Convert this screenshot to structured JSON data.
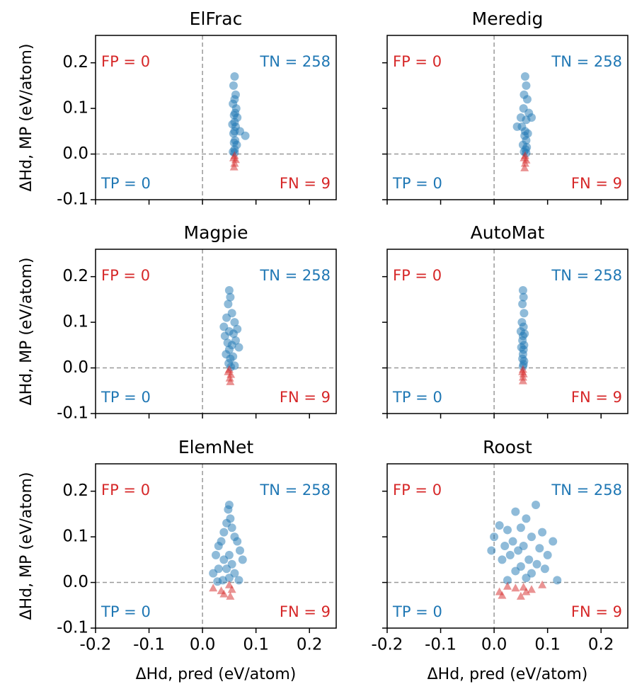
{
  "chart_data": [
    {
      "type": "scatter",
      "title": "ElFrac",
      "xlim": [
        -0.2,
        0.25
      ],
      "ylim": [
        -0.1,
        0.26
      ],
      "xticks": [
        -0.2,
        -0.1,
        0,
        0.1,
        0.2
      ],
      "yticks": [
        -0.1,
        {
          "value": 0,
          "label": "0.0"
        },
        0.1,
        0.2
      ],
      "ylabel": "ΔHd, MP (eV/atom)",
      "hline": 0,
      "vline": 0,
      "series": [
        {
          "color": "#1f77b4",
          "marker": "circle",
          "x": [
            0.06,
            0.058,
            0.062,
            0.06,
            0.057,
            0.063,
            0.061,
            0.059,
            0.065,
            0.06,
            0.056,
            0.062,
            0.06,
            0.058,
            0.07,
            0.08,
            0.061,
            0.059,
            0.064,
            0.06,
            0.057,
            0.06
          ],
          "values": [
            0.17,
            0.15,
            0.13,
            0.12,
            0.11,
            0.1,
            0.09,
            0.085,
            0.08,
            0.07,
            0.065,
            0.06,
            0.05,
            0.045,
            0.05,
            0.04,
            0.03,
            0.025,
            0.02,
            0.01,
            0.005,
            0.003
          ]
        },
        {
          "color": "#d62728",
          "marker": "triangle",
          "x": [
            0.06,
            0.058,
            0.062,
            0.06,
            0.059
          ],
          "values": [
            -0.003,
            -0.008,
            -0.012,
            -0.02,
            -0.028
          ]
        }
      ],
      "annotations": [
        {
          "text": "FP = 0",
          "color": "#d62728"
        },
        {
          "text": "TN = 258",
          "color": "#1f77b4"
        },
        {
          "text": "TP = 0",
          "color": "#1f77b4"
        },
        {
          "text": "FN = 9",
          "color": "#d62728"
        }
      ]
    },
    {
      "type": "scatter",
      "title": "Meredig",
      "xlim": [
        -0.2,
        0.25
      ],
      "ylim": [
        -0.1,
        0.26
      ],
      "xticks": [
        -0.2,
        -0.1,
        0,
        0.1,
        0.2
      ],
      "yticks": [
        -0.1,
        0,
        0.1,
        0.2
      ],
      "hline": 0,
      "vline": 0,
      "series": [
        {
          "color": "#1f77b4",
          "marker": "circle",
          "x": [
            0.058,
            0.06,
            0.056,
            0.062,
            0.055,
            0.065,
            0.05,
            0.043,
            0.06,
            0.07,
            0.052,
            0.058,
            0.063,
            0.057,
            0.06,
            0.054,
            0.061,
            0.059,
            0.056,
            0.06
          ],
          "values": [
            0.17,
            0.15,
            0.13,
            0.12,
            0.1,
            0.09,
            0.08,
            0.06,
            0.075,
            0.08,
            0.06,
            0.05,
            0.045,
            0.04,
            0.03,
            0.02,
            0.015,
            0.01,
            0.005,
            0.002
          ]
        },
        {
          "color": "#d62728",
          "marker": "triangle",
          "x": [
            0.058,
            0.056,
            0.06,
            0.058,
            0.057
          ],
          "values": [
            -0.003,
            -0.008,
            -0.013,
            -0.02,
            -0.03
          ]
        }
      ],
      "annotations": [
        {
          "text": "FP = 0",
          "color": "#d62728"
        },
        {
          "text": "TN = 258",
          "color": "#1f77b4"
        },
        {
          "text": "TP = 0",
          "color": "#1f77b4"
        },
        {
          "text": "FN = 9",
          "color": "#d62728"
        }
      ]
    },
    {
      "type": "scatter",
      "title": "Magpie",
      "xlim": [
        -0.2,
        0.25
      ],
      "ylim": [
        -0.1,
        0.26
      ],
      "xticks": [
        -0.2,
        -0.1,
        0,
        0.1,
        0.2
      ],
      "yticks": [
        -0.1,
        {
          "value": 0,
          "label": "0.0"
        },
        0.1,
        0.2
      ],
      "ylabel": "ΔHd, MP (eV/atom)",
      "hline": 0,
      "vline": 0,
      "series": [
        {
          "color": "#1f77b4",
          "marker": "circle",
          "x": [
            0.05,
            0.052,
            0.048,
            0.055,
            0.045,
            0.06,
            0.04,
            0.065,
            0.05,
            0.058,
            0.042,
            0.062,
            0.047,
            0.055,
            0.068,
            0.05,
            0.044,
            0.057,
            0.052,
            0.049,
            0.06,
            0.053
          ],
          "values": [
            0.17,
            0.155,
            0.14,
            0.12,
            0.11,
            0.1,
            0.09,
            0.085,
            0.08,
            0.075,
            0.07,
            0.06,
            0.055,
            0.05,
            0.045,
            0.04,
            0.03,
            0.025,
            0.02,
            0.01,
            0.005,
            0.002
          ]
        },
        {
          "color": "#d62728",
          "marker": "triangle",
          "x": [
            0.05,
            0.048,
            0.053,
            0.051,
            0.052
          ],
          "values": [
            -0.003,
            -0.008,
            -0.014,
            -0.022,
            -0.03
          ]
        }
      ],
      "annotations": [
        {
          "text": "FP = 0",
          "color": "#d62728"
        },
        {
          "text": "TN = 258",
          "color": "#1f77b4"
        },
        {
          "text": "TP = 0",
          "color": "#1f77b4"
        },
        {
          "text": "FN = 9",
          "color": "#d62728"
        }
      ]
    },
    {
      "type": "scatter",
      "title": "AutoMat",
      "xlim": [
        -0.2,
        0.25
      ],
      "ylim": [
        -0.1,
        0.26
      ],
      "xticks": [
        -0.2,
        -0.1,
        0,
        0.1,
        0.2
      ],
      "yticks": [
        -0.1,
        0,
        0.1,
        0.2
      ],
      "hline": 0,
      "vline": 0,
      "series": [
        {
          "color": "#1f77b4",
          "marker": "circle",
          "x": [
            0.054,
            0.055,
            0.053,
            0.056,
            0.052,
            0.055,
            0.05,
            0.057,
            0.054,
            0.053,
            0.056,
            0.051,
            0.055,
            0.054,
            0.053,
            0.056,
            0.055,
            0.054
          ],
          "values": [
            0.17,
            0.155,
            0.14,
            0.12,
            0.1,
            0.09,
            0.08,
            0.075,
            0.07,
            0.06,
            0.05,
            0.045,
            0.04,
            0.03,
            0.02,
            0.015,
            0.008,
            0.003
          ]
        },
        {
          "color": "#d62728",
          "marker": "triangle",
          "x": [
            0.054,
            0.053,
            0.055,
            0.054,
            0.054
          ],
          "values": [
            -0.003,
            -0.008,
            -0.013,
            -0.02,
            -0.028
          ]
        }
      ],
      "annotations": [
        {
          "text": "FP = 0",
          "color": "#d62728"
        },
        {
          "text": "TN = 258",
          "color": "#1f77b4"
        },
        {
          "text": "TP = 0",
          "color": "#1f77b4"
        },
        {
          "text": "FN = 9",
          "color": "#d62728"
        }
      ]
    },
    {
      "type": "scatter",
      "title": "ElemNet",
      "xlim": [
        -0.2,
        0.25
      ],
      "ylim": [
        -0.1,
        0.26
      ],
      "xticks": [
        -0.2,
        -0.1,
        {
          "value": 0,
          "label": "0.0"
        },
        0.1,
        0.2
      ],
      "yticks": [
        -0.1,
        {
          "value": 0,
          "label": "0.0"
        },
        0.1,
        0.2
      ],
      "xlabel": "ΔHd, pred (eV/atom)",
      "ylabel": "ΔHd, MP (eV/atom)",
      "hline": 0,
      "vline": 0,
      "series": [
        {
          "color": "#1f77b4",
          "marker": "circle",
          "x": [
            0.05,
            0.048,
            0.052,
            0.045,
            0.055,
            0.04,
            0.06,
            0.035,
            0.065,
            0.03,
            0.07,
            0.025,
            0.05,
            0.075,
            0.04,
            0.055,
            0.03,
            0.045,
            0.06,
            0.02,
            0.05,
            0.038,
            0.068,
            0.028
          ],
          "values": [
            0.17,
            0.16,
            0.14,
            0.13,
            0.12,
            0.11,
            0.1,
            0.09,
            0.09,
            0.08,
            0.07,
            0.06,
            0.06,
            0.05,
            0.05,
            0.04,
            0.03,
            0.03,
            0.02,
            0.02,
            0.01,
            0.005,
            0.005,
            0.002
          ]
        },
        {
          "color": "#d62728",
          "marker": "triangle",
          "x": [
            0.02,
            0.035,
            0.05,
            0.055,
            0.04,
            0.052
          ],
          "values": [
            -0.012,
            -0.018,
            -0.005,
            -0.015,
            -0.025,
            -0.03
          ]
        }
      ],
      "annotations": [
        {
          "text": "FP = 0",
          "color": "#d62728"
        },
        {
          "text": "TN = 258",
          "color": "#1f77b4"
        },
        {
          "text": "TP = 0",
          "color": "#1f77b4"
        },
        {
          "text": "FN = 9",
          "color": "#d62728"
        }
      ]
    },
    {
      "type": "scatter",
      "title": "Roost",
      "xlim": [
        -0.2,
        0.25
      ],
      "ylim": [
        -0.1,
        0.26
      ],
      "xticks": [
        -0.2,
        -0.1,
        {
          "value": 0,
          "label": "0.0"
        },
        0.1,
        0.2
      ],
      "yticks": [
        -0.1,
        0,
        0.1,
        0.2
      ],
      "xlabel": "ΔHd, pred (eV/atom)",
      "hline": 0,
      "vline": 0,
      "series": [
        {
          "color": "#1f77b4",
          "marker": "circle",
          "x": [
            0.078,
            0.04,
            0.06,
            0.01,
            0.025,
            0.05,
            0.09,
            0.0,
            0.07,
            0.035,
            0.11,
            0.02,
            0.055,
            0.085,
            -0.005,
            0.045,
            0.1,
            0.03,
            0.065,
            0.015,
            0.08,
            0.05,
            0.095,
            0.04,
            0.07,
            0.118,
            0.06,
            0.025
          ],
          "values": [
            0.17,
            0.155,
            0.14,
            0.125,
            0.115,
            0.12,
            0.11,
            0.1,
            0.1,
            0.09,
            0.09,
            0.08,
            0.08,
            0.075,
            0.07,
            0.07,
            0.06,
            0.06,
            0.05,
            0.05,
            0.04,
            0.035,
            0.03,
            0.025,
            0.02,
            0.005,
            0.01,
            0.005
          ]
        },
        {
          "color": "#d62728",
          "marker": "triangle",
          "x": [
            0.01,
            0.025,
            0.04,
            0.055,
            0.07,
            0.09,
            0.05,
            0.015,
            0.06
          ],
          "values": [
            -0.02,
            -0.008,
            -0.012,
            -0.01,
            -0.015,
            -0.005,
            -0.03,
            -0.028,
            -0.02
          ]
        }
      ],
      "annotations": [
        {
          "text": "FP = 0",
          "color": "#d62728"
        },
        {
          "text": "TN = 258",
          "color": "#1f77b4"
        },
        {
          "text": "TP = 0",
          "color": "#1f77b4"
        },
        {
          "text": "FN = 9",
          "color": "#d62728"
        }
      ]
    }
  ]
}
